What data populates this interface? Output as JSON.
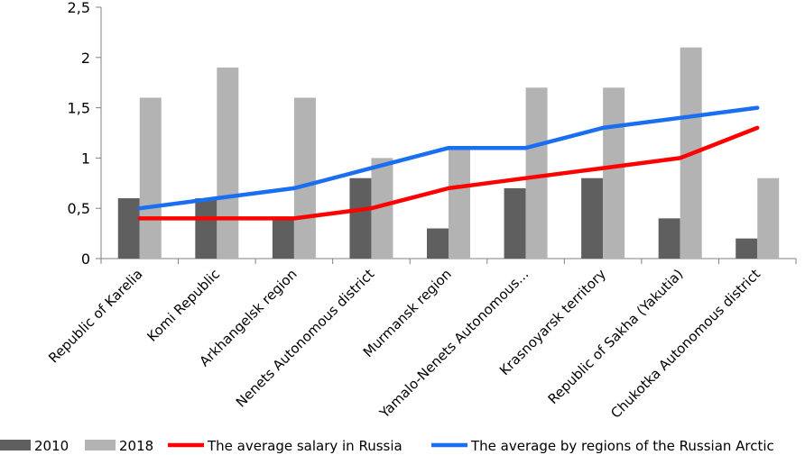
{
  "chart_data": {
    "type": "bar",
    "title": "",
    "xlabel": "",
    "ylabel": "",
    "ylim": [
      0,
      2.5
    ],
    "yticks": [
      "0",
      "0,5",
      "1",
      "1,5",
      "2",
      "2,5"
    ],
    "grid": false,
    "legend_position": "bottom",
    "categories": [
      "Republic of Karelia",
      "Komi Republic",
      "Arkhangelsk region",
      "Nenets Autonomous district",
      "Murmansk region",
      "Yamalo-Nenets Autonomous...",
      "Krasnoyarsk territory",
      "Republic of Sakha (Yakutia)",
      "Chukotka Autonomous district"
    ],
    "series": [
      {
        "name": "2010",
        "kind": "bar",
        "color": "#5f5f5f",
        "values": [
          0.6,
          0.6,
          0.4,
          0.8,
          0.3,
          0.7,
          0.8,
          0.4,
          0.2
        ]
      },
      {
        "name": "2018",
        "kind": "bar",
        "color": "#b3b3b3",
        "values": [
          1.6,
          1.9,
          1.6,
          1.0,
          1.1,
          1.7,
          1.7,
          2.1,
          0.8
        ]
      },
      {
        "name": "The average salary in Russia",
        "kind": "line",
        "color": "#ff0000",
        "values": [
          0.4,
          0.4,
          0.4,
          0.5,
          0.7,
          0.8,
          0.9,
          1.0,
          1.3
        ]
      },
      {
        "name": "The average by regions of the Russian Arctic",
        "kind": "line",
        "color": "#1a6ff0",
        "values": [
          0.5,
          0.6,
          0.7,
          0.9,
          1.1,
          1.1,
          1.3,
          1.4,
          1.5
        ]
      }
    ]
  }
}
